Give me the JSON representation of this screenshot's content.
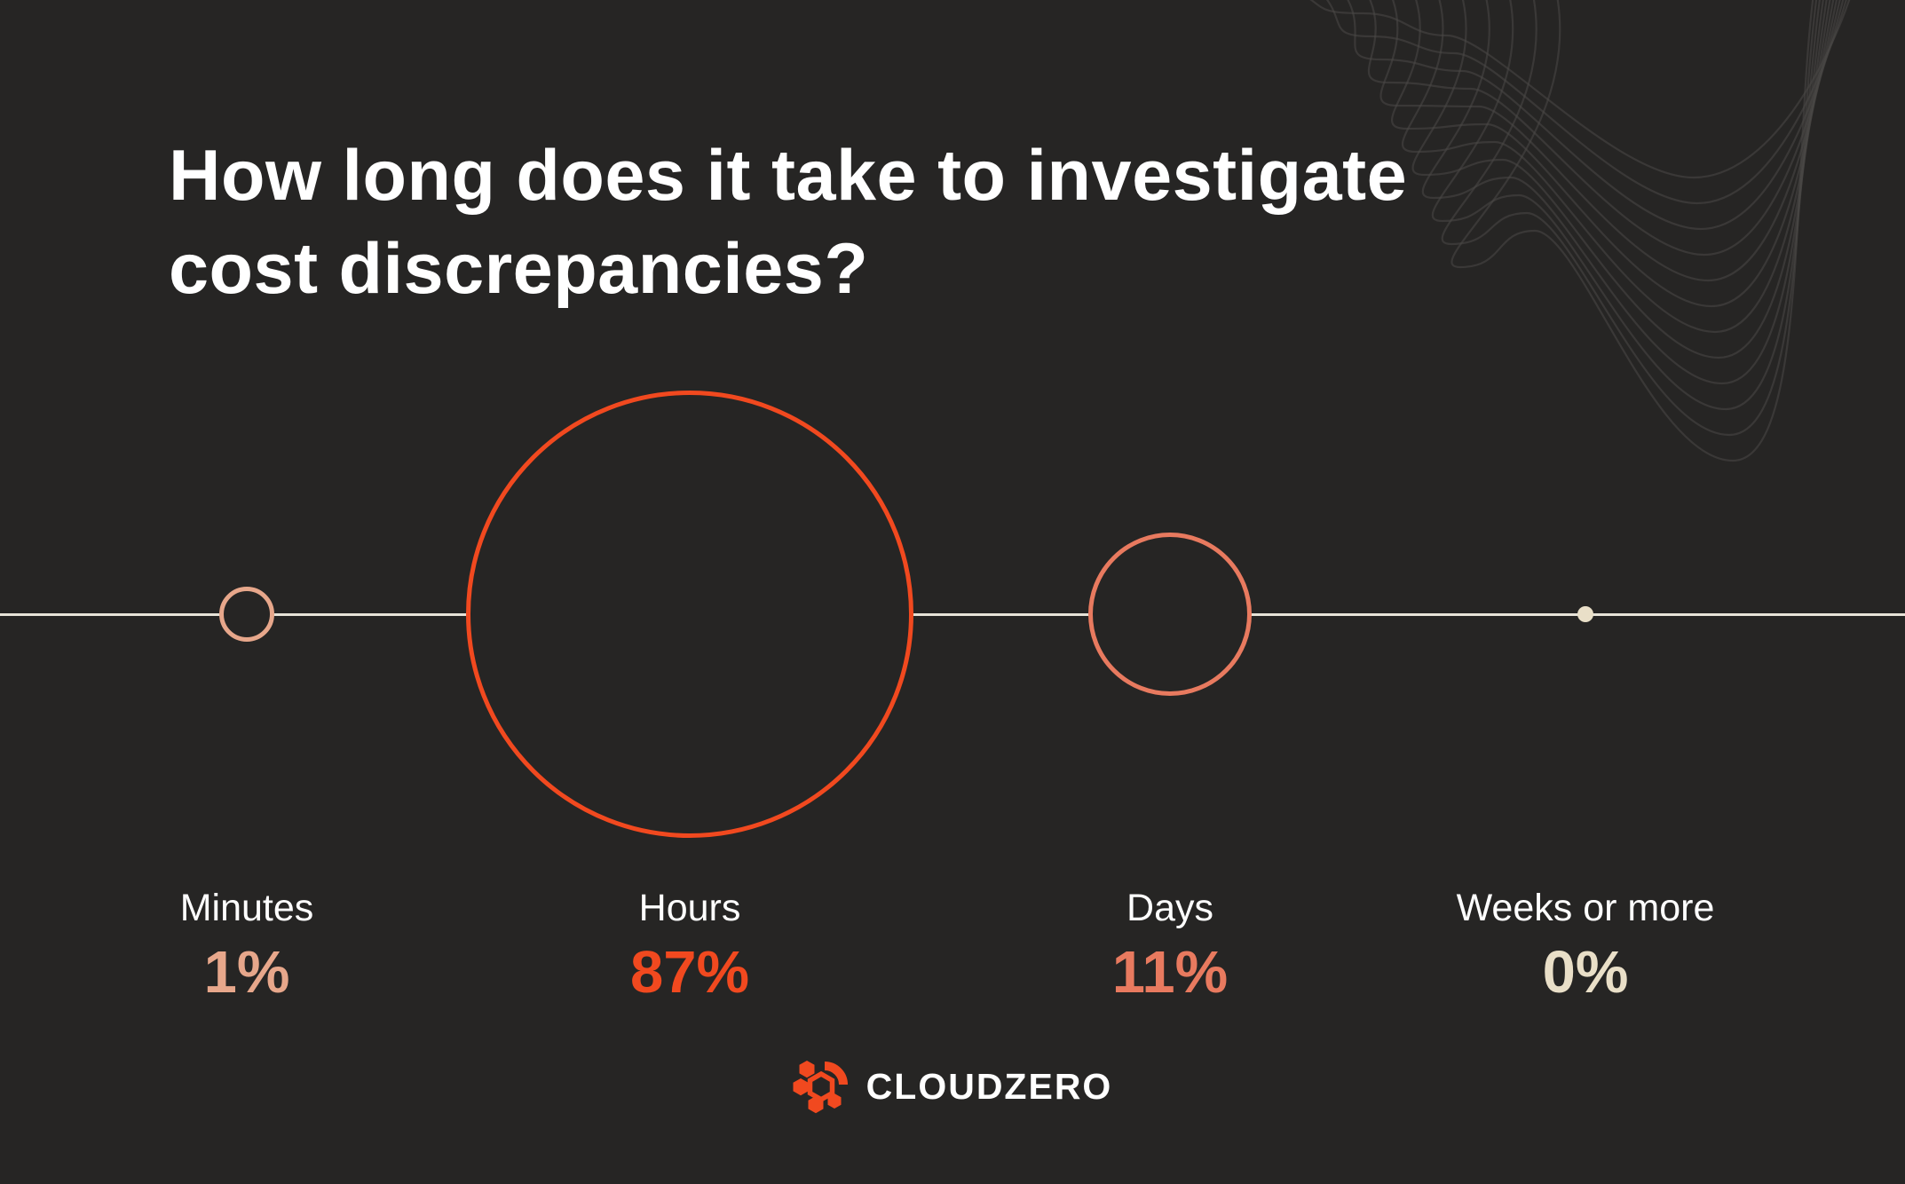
{
  "title": {
    "line1": "How long does it take to investigate",
    "line2": "cost discrepancies?"
  },
  "chart_data": {
    "type": "scatter",
    "variant": "proportional-area-circles-on-axis",
    "categories": [
      "Minutes",
      "Hours",
      "Days",
      "Weeks or more"
    ],
    "values": [
      1,
      87,
      11,
      0
    ],
    "unit": "%",
    "title": "How long does it take to investigate cost discrepancies?",
    "legend_position": "below",
    "grid": false,
    "axis_line_color": "#e7e3d8",
    "series_colors": [
      "#e7a78b",
      "#f1491f",
      "#e87a5f",
      "#e9dfc8"
    ]
  },
  "categories": [
    {
      "label": "Minutes",
      "value": "1%",
      "color": "#e7a78b"
    },
    {
      "label": "Hours",
      "value": "87%",
      "color": "#f1491f"
    },
    {
      "label": "Days",
      "value": "11%",
      "color": "#e87a5f"
    },
    {
      "label": "Weeks or more",
      "value": "0%",
      "color": "#e9dfc8"
    }
  ],
  "footer": {
    "brand": "CLOUDZERO",
    "logo_color": "#f1491f"
  },
  "colors": {
    "background": "#262524",
    "title_text": "#ffffff",
    "axis_line": "#e7e3d8",
    "wave_decoration": "#4a4847"
  }
}
